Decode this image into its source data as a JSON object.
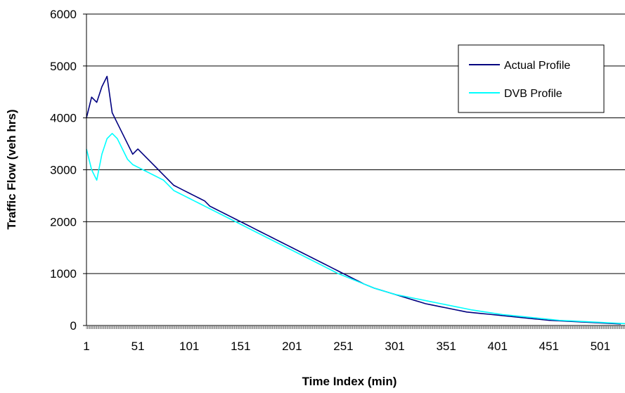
{
  "chart_data": {
    "type": "line",
    "title": "",
    "xlabel": "Time Index (min)",
    "ylabel": "Traffic Flow (veh hrs)",
    "xlim": [
      1,
      525
    ],
    "ylim": [
      0,
      6000
    ],
    "y_ticks": [
      0,
      1000,
      2000,
      3000,
      4000,
      5000,
      6000
    ],
    "x_tick_labels": [
      "1",
      "51",
      "101",
      "151",
      "201",
      "251",
      "301",
      "351",
      "401",
      "451",
      "501"
    ],
    "x_ticks": [
      1,
      51,
      101,
      151,
      201,
      251,
      301,
      351,
      401,
      451,
      501
    ],
    "grid": "horizontal",
    "legend": "top-right",
    "colors": {
      "actual": "#000080",
      "dvb": "#00FFFF"
    },
    "series": [
      {
        "name": "Actual Profile",
        "color": "#000080",
        "x_start": 1,
        "x_step": 5,
        "values": [
          4000,
          4400,
          4300,
          4600,
          4800,
          4100,
          3900,
          3700,
          3500,
          3300,
          3400,
          3300,
          3200,
          3100,
          3000,
          2900,
          2800,
          2700,
          2650,
          2600,
          2550,
          2500,
          2450,
          2400,
          2300,
          2250,
          2200,
          2150,
          2100,
          2050,
          2000,
          1950,
          1900,
          1850,
          1800,
          1750,
          1700,
          1650,
          1600,
          1550,
          1500,
          1450,
          1400,
          1350,
          1300,
          1250,
          1200,
          1150,
          1100,
          1050,
          1000,
          950,
          900,
          850,
          800,
          760,
          720,
          690,
          660,
          630,
          600,
          570,
          540,
          510,
          480,
          450,
          420,
          400,
          380,
          360,
          340,
          320,
          300,
          280,
          260,
          250,
          240,
          230,
          220,
          210,
          200,
          190,
          180,
          170,
          160,
          150,
          140,
          130,
          120,
          110,
          100,
          95,
          90,
          85,
          80,
          75,
          70,
          65,
          60,
          55,
          50,
          45,
          40,
          35,
          30
        ]
      },
      {
        "name": "DVB Profile",
        "color": "#00FFFF",
        "x_start": 1,
        "x_step": 5,
        "values": [
          3400,
          3000,
          2800,
          3300,
          3600,
          3700,
          3600,
          3400,
          3200,
          3100,
          3050,
          3000,
          2950,
          2900,
          2850,
          2800,
          2700,
          2600,
          2550,
          2500,
          2450,
          2400,
          2350,
          2300,
          2250,
          2200,
          2150,
          2100,
          2050,
          2000,
          1950,
          1900,
          1850,
          1800,
          1750,
          1700,
          1650,
          1600,
          1550,
          1500,
          1450,
          1400,
          1350,
          1300,
          1250,
          1200,
          1150,
          1100,
          1050,
          1000,
          960,
          920,
          880,
          840,
          800,
          760,
          720,
          690,
          660,
          630,
          600,
          580,
          560,
          540,
          520,
          500,
          480,
          460,
          440,
          420,
          400,
          380,
          360,
          340,
          320,
          300,
          285,
          270,
          255,
          240,
          225,
          210,
          200,
          190,
          180,
          170,
          160,
          150,
          140,
          130,
          120,
          110,
          100,
          95,
          90,
          85,
          80,
          75,
          70,
          65,
          60,
          55,
          50,
          45,
          40,
          35
        ]
      }
    ]
  }
}
